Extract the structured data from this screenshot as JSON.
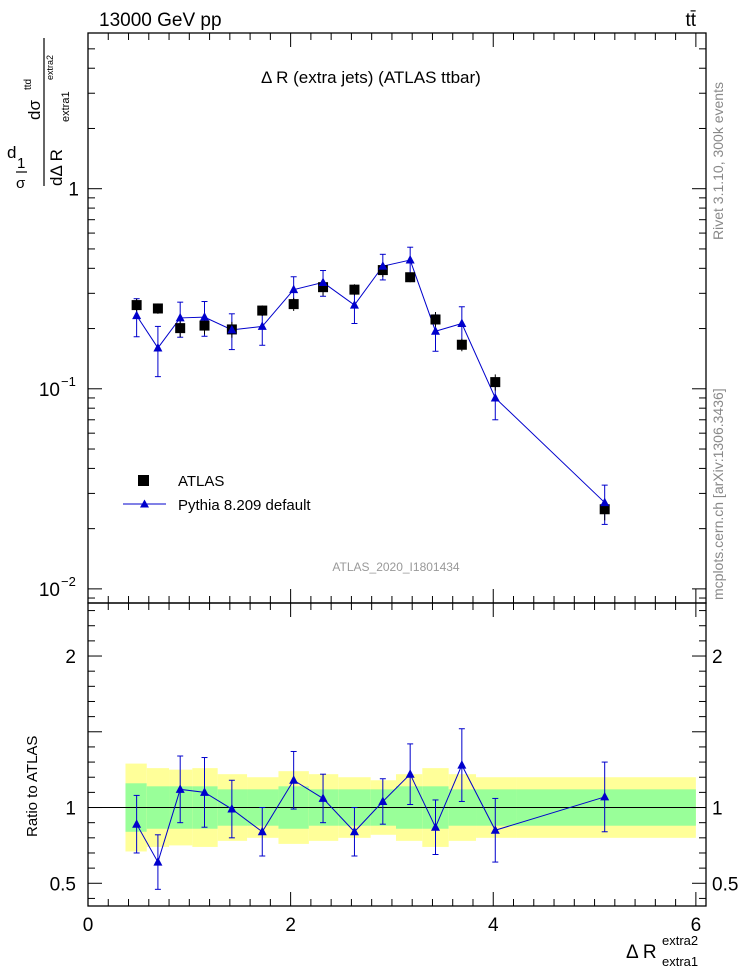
{
  "header": {
    "energy_label": "13000 GeV pp",
    "process_label": "tt̄"
  },
  "side_labels": {
    "version": "Rivet 3.1.10,  300k events",
    "source": "mcplots.cern.ch [arXiv:1306.3436]"
  },
  "chart_data": [
    {
      "type": "scatter",
      "title": "Δ R (extra jets) (ATLAS ttbar)",
      "watermark": "ATLAS_2020_I1801434",
      "ylabel_parts": {
        "num_top": "1",
        "den_top": "σ",
        "mid": "d",
        "frac_num": "dσ",
        "frac_num_sup": "ttd",
        "frac_den": "dΔ R",
        "frac_den_sub": "extra1",
        "frac_den_sup": "extra2"
      },
      "yscale": "log",
      "ylim": [
        0.0085,
        6.0
      ],
      "xlim": [
        0,
        6.1
      ],
      "y_tick_labels": [
        {
          "value": 1,
          "base": "1",
          "exp": ""
        },
        {
          "value": 0.1,
          "base": "10",
          "exp": "−1"
        },
        {
          "value": 0.01,
          "base": "10",
          "exp": "−2"
        }
      ],
      "legend": [
        {
          "name": "ATLAS",
          "marker": "square",
          "color": "#000000"
        },
        {
          "name": "Pythia 8.209 default",
          "marker": "triangle",
          "color": "#0000cc"
        }
      ],
      "series": [
        {
          "name": "ATLAS",
          "x": [
            0.48,
            0.69,
            0.91,
            1.15,
            1.42,
            1.72,
            2.03,
            2.32,
            2.63,
            2.91,
            3.18,
            3.43,
            3.69,
            4.02,
            5.1
          ],
          "y": [
            0.262,
            0.252,
            0.201,
            0.207,
            0.198,
            0.246,
            0.265,
            0.322,
            0.313,
            0.392,
            0.361,
            0.222,
            0.166,
            0.108,
            0.025
          ],
          "yerr": [
            0.02,
            0.015,
            0.02,
            0.02,
            0.018,
            0.015,
            0.02,
            0.03,
            0.02,
            0.03,
            0.02,
            0.02,
            0.012,
            0.01,
            0.003
          ]
        },
        {
          "name": "Pythia 8.209 default",
          "x": [
            0.48,
            0.69,
            0.91,
            1.15,
            1.42,
            1.72,
            2.03,
            2.32,
            2.63,
            2.91,
            3.18,
            3.43,
            3.69,
            4.02,
            5.1
          ],
          "y": [
            0.232,
            0.16,
            0.226,
            0.228,
            0.197,
            0.205,
            0.313,
            0.34,
            0.262,
            0.41,
            0.44,
            0.194,
            0.212,
            0.09,
            0.027
          ],
          "yerr": [
            0.05,
            0.045,
            0.045,
            0.045,
            0.04,
            0.04,
            0.05,
            0.05,
            0.05,
            0.06,
            0.07,
            0.04,
            0.045,
            0.02,
            0.006
          ]
        }
      ]
    },
    {
      "type": "scatter",
      "ylabel": "Ratio to ATLAS",
      "xlabel_parts": {
        "base": "Δ R",
        "sup": "extra2",
        "sub": "extra1"
      },
      "xlim": [
        0,
        6.1
      ],
      "ylim": [
        0.35,
        2.35
      ],
      "x_ticks": [
        "0",
        "2",
        "4",
        "6"
      ],
      "y_ticks": [
        "0.5",
        "1",
        "2"
      ],
      "bands": {
        "bin_edges": [
          0.37,
          0.58,
          0.8,
          1.03,
          1.28,
          1.57,
          1.88,
          2.18,
          2.47,
          2.79,
          3.04,
          3.3,
          3.56,
          3.83,
          4.23,
          6.0
        ],
        "green_half": [
          0.16,
          0.14,
          0.14,
          0.14,
          0.12,
          0.12,
          0.14,
          0.12,
          0.12,
          0.12,
          0.14,
          0.14,
          0.12,
          0.12,
          0.12
        ],
        "yellow_half": [
          0.29,
          0.26,
          0.25,
          0.26,
          0.22,
          0.2,
          0.24,
          0.22,
          0.2,
          0.18,
          0.22,
          0.26,
          0.22,
          0.2,
          0.2
        ]
      },
      "series": [
        {
          "name": "Pythia 8.209 default",
          "x": [
            0.48,
            0.69,
            0.91,
            1.15,
            1.42,
            1.72,
            2.03,
            2.32,
            2.63,
            2.91,
            3.18,
            3.43,
            3.69,
            4.02,
            5.1
          ],
          "y": [
            0.89,
            0.64,
            1.12,
            1.1,
            0.99,
            0.84,
            1.18,
            1.06,
            0.84,
            1.04,
            1.22,
            0.87,
            1.28,
            0.85,
            1.07
          ],
          "yerr": [
            0.19,
            0.18,
            0.22,
            0.23,
            0.19,
            0.16,
            0.19,
            0.16,
            0.16,
            0.15,
            0.2,
            0.18,
            0.24,
            0.21,
            0.23
          ]
        }
      ]
    }
  ]
}
